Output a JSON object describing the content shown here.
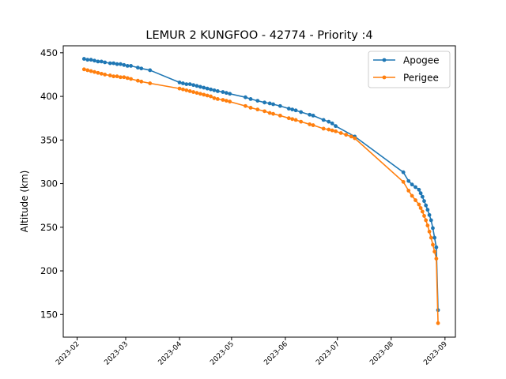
{
  "chart_data": {
    "type": "line",
    "title": "LEMUR 2 KUNGFOO - 42774 - Priority :4",
    "xlabel": "",
    "ylabel": "Altitude (km)",
    "xlim": [
      "2023-01-24",
      "2023-09-07"
    ],
    "ylim": [
      124,
      458
    ],
    "grid": false,
    "legend_position": "top-right",
    "x_ticks": [
      "2023-02",
      "2023-03",
      "2023-04",
      "2023-05",
      "2023-06",
      "2023-07",
      "2023-08",
      "2023-09"
    ],
    "y_ticks": [
      150,
      200,
      250,
      300,
      350,
      400,
      450
    ],
    "series": [
      {
        "name": "Apogee",
        "color": "#1f77b4",
        "x": [
          "2023-02-05",
          "2023-02-07",
          "2023-02-09",
          "2023-02-11",
          "2023-02-13",
          "2023-02-15",
          "2023-02-17",
          "2023-02-20",
          "2023-02-22",
          "2023-02-24",
          "2023-02-26",
          "2023-02-28",
          "2023-03-02",
          "2023-03-04",
          "2023-03-08",
          "2023-03-10",
          "2023-03-15",
          "2023-04-01",
          "2023-04-03",
          "2023-04-05",
          "2023-04-07",
          "2023-04-09",
          "2023-04-11",
          "2023-04-13",
          "2023-04-15",
          "2023-04-17",
          "2023-04-19",
          "2023-04-21",
          "2023-04-23",
          "2023-04-26",
          "2023-04-28",
          "2023-04-30",
          "2023-05-09",
          "2023-05-12",
          "2023-05-16",
          "2023-05-20",
          "2023-05-23",
          "2023-05-25",
          "2023-05-29",
          "2023-06-03",
          "2023-06-05",
          "2023-06-07",
          "2023-06-10",
          "2023-06-15",
          "2023-06-17",
          "2023-06-23",
          "2023-06-26",
          "2023-06-28",
          "2023-06-30",
          "2023-07-11",
          "2023-08-08",
          "2023-08-11",
          "2023-08-13",
          "2023-08-15",
          "2023-08-17",
          "2023-08-18",
          "2023-08-19",
          "2023-08-20",
          "2023-08-21",
          "2023-08-22",
          "2023-08-23",
          "2023-08-24",
          "2023-08-25",
          "2023-08-26",
          "2023-08-27",
          "2023-08-28"
        ],
        "values": [
          443,
          442,
          442,
          441,
          440,
          440,
          439,
          438,
          438,
          437,
          437,
          436,
          435,
          435,
          433,
          432,
          430,
          416,
          415,
          414,
          414,
          413,
          412,
          411,
          410,
          409,
          408,
          407,
          406,
          405,
          404,
          403,
          399,
          397,
          395,
          393,
          392,
          391,
          389,
          386,
          385,
          384,
          382,
          379,
          378,
          373,
          371,
          369,
          366,
          354,
          313,
          303,
          299,
          296,
          293,
          289,
          285,
          280,
          275,
          270,
          264,
          258,
          249,
          238,
          227,
          155
        ]
      },
      {
        "name": "Perigee",
        "color": "#ff7f0e",
        "x": [
          "2023-02-05",
          "2023-02-07",
          "2023-02-09",
          "2023-02-11",
          "2023-02-13",
          "2023-02-15",
          "2023-02-17",
          "2023-02-20",
          "2023-02-22",
          "2023-02-24",
          "2023-02-26",
          "2023-02-28",
          "2023-03-02",
          "2023-03-04",
          "2023-03-08",
          "2023-03-10",
          "2023-03-15",
          "2023-04-01",
          "2023-04-03",
          "2023-04-05",
          "2023-04-07",
          "2023-04-09",
          "2023-04-11",
          "2023-04-13",
          "2023-04-15",
          "2023-04-17",
          "2023-04-19",
          "2023-04-21",
          "2023-04-23",
          "2023-04-26",
          "2023-04-28",
          "2023-04-30",
          "2023-05-09",
          "2023-05-12",
          "2023-05-16",
          "2023-05-20",
          "2023-05-23",
          "2023-05-25",
          "2023-05-29",
          "2023-06-03",
          "2023-06-05",
          "2023-06-07",
          "2023-06-10",
          "2023-06-15",
          "2023-06-17",
          "2023-06-23",
          "2023-06-26",
          "2023-06-28",
          "2023-06-30",
          "2023-07-03",
          "2023-07-06",
          "2023-07-09",
          "2023-07-11",
          "2023-08-08",
          "2023-08-11",
          "2023-08-13",
          "2023-08-15",
          "2023-08-17",
          "2023-08-18",
          "2023-08-19",
          "2023-08-20",
          "2023-08-21",
          "2023-08-22",
          "2023-08-23",
          "2023-08-24",
          "2023-08-25",
          "2023-08-26",
          "2023-08-27",
          "2023-08-28"
        ],
        "values": [
          431,
          430,
          429,
          428,
          427,
          426,
          425,
          424,
          423,
          423,
          422,
          422,
          421,
          420,
          418,
          417,
          415,
          409,
          408,
          407,
          406,
          405,
          404,
          403,
          402,
          401,
          400,
          398,
          397,
          396,
          395,
          394,
          389,
          387,
          385,
          383,
          381,
          380,
          378,
          375,
          374,
          373,
          371,
          368,
          367,
          363,
          362,
          361,
          360,
          358,
          356,
          354,
          352,
          302,
          292,
          286,
          281,
          276,
          272,
          268,
          263,
          258,
          252,
          245,
          238,
          230,
          222,
          214,
          140
        ]
      }
    ]
  }
}
